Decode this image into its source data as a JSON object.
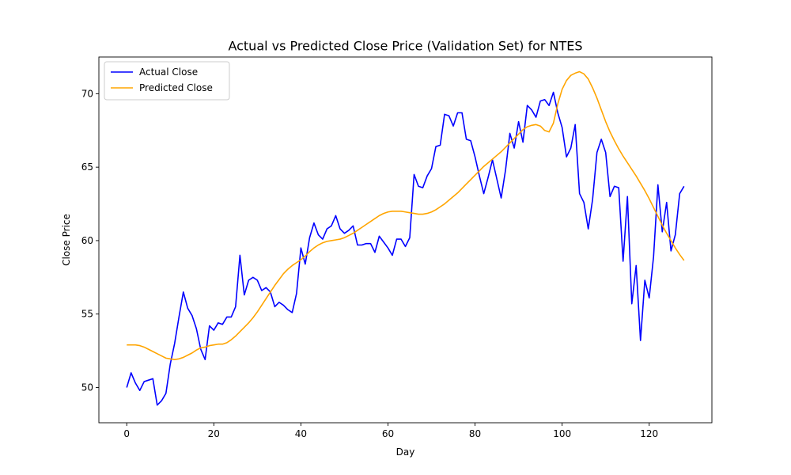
{
  "chart_data": {
    "type": "line",
    "title": "Actual vs Predicted Close Price (Validation Set) for NTES",
    "xlabel": "Day",
    "ylabel": "Close Price",
    "xlim": [
      -6.4,
      134.4
    ],
    "ylim": [
      47.6,
      72.5
    ],
    "xticks": [
      0,
      20,
      40,
      60,
      80,
      100,
      120
    ],
    "yticks": [
      50,
      55,
      60,
      65,
      70
    ],
    "grid": false,
    "legend": "top-left",
    "series": [
      {
        "name": "Actual Close",
        "color": "#0000ff",
        "x": [
          0,
          1,
          2,
          3,
          4,
          5,
          6,
          7,
          8,
          9,
          10,
          11,
          12,
          13,
          14,
          15,
          16,
          17,
          18,
          19,
          20,
          21,
          22,
          23,
          24,
          25,
          26,
          27,
          28,
          29,
          30,
          31,
          32,
          33,
          34,
          35,
          36,
          37,
          38,
          39,
          40,
          41,
          42,
          43,
          44,
          45,
          46,
          47,
          48,
          49,
          50,
          51,
          52,
          53,
          54,
          55,
          56,
          57,
          58,
          59,
          60,
          61,
          62,
          63,
          64,
          65,
          66,
          67,
          68,
          69,
          70,
          71,
          72,
          73,
          74,
          75,
          76,
          77,
          78,
          79,
          80,
          81,
          82,
          83,
          84,
          85,
          86,
          87,
          88,
          89,
          90,
          91,
          92,
          93,
          94,
          95,
          96,
          97,
          98,
          99,
          100,
          101,
          102,
          103,
          104,
          105,
          106,
          107,
          108,
          109,
          110,
          111,
          112,
          113,
          114,
          115,
          116,
          117,
          118,
          119,
          120,
          121,
          122,
          123,
          124,
          125,
          126,
          127,
          128
        ],
        "y": [
          50.0,
          51.0,
          50.3,
          49.8,
          50.4,
          50.5,
          50.6,
          48.8,
          49.1,
          49.6,
          51.6,
          53.0,
          54.8,
          56.5,
          55.4,
          54.9,
          54.0,
          52.6,
          51.9,
          54.2,
          53.9,
          54.4,
          54.3,
          54.8,
          54.8,
          55.5,
          59.0,
          56.3,
          57.3,
          57.5,
          57.3,
          56.6,
          56.8,
          56.5,
          55.5,
          55.8,
          55.6,
          55.3,
          55.1,
          56.4,
          59.5,
          58.4,
          60.2,
          61.2,
          60.4,
          60.1,
          60.8,
          61.0,
          61.7,
          60.8,
          60.5,
          60.7,
          61.0,
          59.7,
          59.7,
          59.8,
          59.8,
          59.2,
          60.3,
          59.9,
          59.5,
          59.0,
          60.1,
          60.1,
          59.6,
          60.2,
          64.5,
          63.7,
          63.6,
          64.4,
          64.9,
          66.4,
          66.5,
          68.6,
          68.5,
          67.8,
          68.7,
          68.7,
          66.9,
          66.8,
          65.7,
          64.4,
          63.2,
          64.3,
          65.5,
          64.2,
          62.9,
          64.8,
          67.3,
          66.3,
          68.1,
          66.7,
          69.2,
          68.9,
          68.4,
          69.5,
          69.6,
          69.2,
          70.1,
          68.7,
          67.7,
          65.7,
          66.3,
          67.9,
          63.2,
          62.6,
          60.8,
          62.8,
          66.0,
          66.9,
          66.0,
          63.0,
          63.7,
          63.6,
          58.6,
          63.0,
          55.7,
          58.3,
          53.2,
          57.3,
          56.1,
          58.9,
          63.8,
          60.6,
          62.6,
          59.3,
          60.4,
          63.2,
          63.7
        ]
      },
      {
        "name": "Predicted Close",
        "color": "#ffa500",
        "x": [
          0,
          1,
          2,
          3,
          4,
          5,
          6,
          7,
          8,
          9,
          10,
          11,
          12,
          13,
          14,
          15,
          16,
          17,
          18,
          19,
          20,
          21,
          22,
          23,
          24,
          25,
          26,
          27,
          28,
          29,
          30,
          31,
          32,
          33,
          34,
          35,
          36,
          37,
          38,
          39,
          40,
          41,
          42,
          43,
          44,
          45,
          46,
          47,
          48,
          49,
          50,
          51,
          52,
          53,
          54,
          55,
          56,
          57,
          58,
          59,
          60,
          61,
          62,
          63,
          64,
          65,
          66,
          67,
          68,
          69,
          70,
          71,
          72,
          73,
          74,
          75,
          76,
          77,
          78,
          79,
          80,
          81,
          82,
          83,
          84,
          85,
          86,
          87,
          88,
          89,
          90,
          91,
          92,
          93,
          94,
          95,
          96,
          97,
          98,
          99,
          100,
          101,
          102,
          103,
          104,
          105,
          106,
          107,
          108,
          109,
          110,
          111,
          112,
          113,
          114,
          115,
          116,
          117,
          118,
          119,
          120,
          121,
          122,
          123,
          124,
          125,
          126,
          127,
          128
        ],
        "y": [
          52.9,
          52.9,
          52.9,
          52.85,
          52.75,
          52.6,
          52.45,
          52.3,
          52.15,
          52.0,
          51.95,
          51.9,
          51.95,
          52.05,
          52.2,
          52.35,
          52.55,
          52.7,
          52.75,
          52.85,
          52.9,
          52.95,
          52.95,
          53.05,
          53.25,
          53.5,
          53.8,
          54.1,
          54.4,
          54.75,
          55.15,
          55.6,
          56.05,
          56.5,
          56.95,
          57.35,
          57.75,
          58.05,
          58.3,
          58.5,
          58.7,
          58.95,
          59.25,
          59.5,
          59.7,
          59.85,
          59.95,
          60.0,
          60.05,
          60.1,
          60.2,
          60.35,
          60.5,
          60.7,
          60.9,
          61.1,
          61.3,
          61.5,
          61.7,
          61.85,
          61.95,
          62.0,
          62.0,
          62.0,
          61.95,
          61.9,
          61.85,
          61.8,
          61.8,
          61.85,
          61.95,
          62.1,
          62.3,
          62.5,
          62.75,
          63.0,
          63.25,
          63.55,
          63.85,
          64.15,
          64.45,
          64.75,
          65.05,
          65.3,
          65.55,
          65.8,
          66.05,
          66.35,
          66.65,
          66.95,
          67.25,
          67.55,
          67.75,
          67.85,
          67.9,
          67.8,
          67.5,
          67.4,
          68.0,
          69.3,
          70.3,
          70.9,
          71.25,
          71.4,
          71.5,
          71.35,
          71.0,
          70.4,
          69.7,
          68.9,
          68.1,
          67.4,
          66.8,
          66.25,
          65.75,
          65.3,
          64.85,
          64.4,
          63.9,
          63.4,
          62.85,
          62.25,
          61.65,
          61.05,
          60.5,
          60.0,
          59.5,
          59.05,
          58.65
        ]
      }
    ]
  }
}
